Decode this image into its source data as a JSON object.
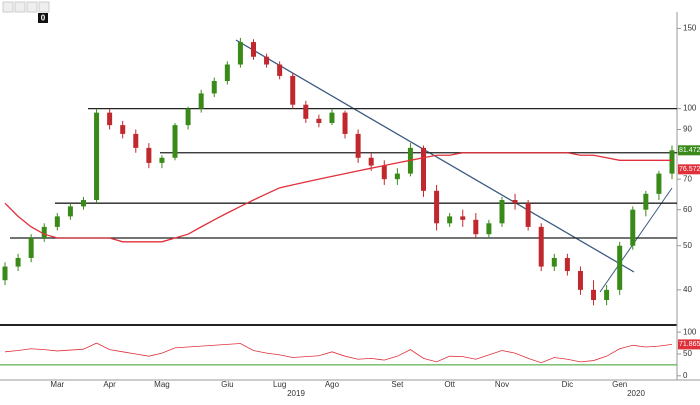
{
  "toolbar": {
    "counter": "0"
  },
  "chart_data": {
    "type": "candlestick",
    "categories": [
      null,
      null,
      null,
      null,
      "Mar",
      null,
      null,
      null,
      "Apr",
      null,
      null,
      null,
      "Mag",
      null,
      null,
      null,
      null,
      "Giu",
      null,
      null,
      null,
      "Lug",
      null,
      null,
      null,
      "Ago",
      null,
      null,
      null,
      null,
      "Set",
      null,
      null,
      null,
      "Ott",
      null,
      null,
      null,
      "Nov",
      null,
      null,
      null,
      null,
      "Dic",
      null,
      null,
      null,
      "Gen",
      null,
      null,
      null,
      null
    ],
    "years": [
      "2019",
      "2020"
    ],
    "open": [
      42,
      45,
      47,
      52,
      55,
      58,
      61,
      63,
      98,
      92,
      88,
      82,
      76,
      78,
      92,
      100,
      108,
      115,
      125,
      140,
      130,
      125,
      118,
      102,
      95,
      93,
      98,
      88,
      78,
      75,
      70,
      72,
      82,
      66,
      56,
      58,
      57,
      53,
      56,
      63,
      62,
      55,
      45,
      47,
      44,
      40,
      38,
      40,
      50,
      60,
      65,
      72
    ],
    "high": [
      46,
      48,
      53,
      56,
      59,
      62,
      64,
      100,
      100,
      94,
      90,
      84,
      79,
      93,
      101,
      110,
      117,
      127,
      143,
      142,
      132,
      127,
      120,
      104,
      97,
      100,
      99,
      90,
      80,
      77,
      74,
      84,
      83,
      68,
      59,
      60,
      59,
      57,
      64,
      65,
      63,
      56,
      48,
      48,
      45,
      42,
      41,
      51,
      61,
      66,
      73,
      83
    ],
    "low": [
      41,
      44,
      46,
      51,
      54,
      57,
      60,
      62,
      90,
      86,
      80,
      74,
      74,
      77,
      90,
      98,
      106,
      113,
      123,
      128,
      123,
      116,
      100,
      93,
      91,
      92,
      86,
      76,
      73,
      68,
      68,
      71,
      64,
      54,
      55,
      55,
      52,
      52,
      55,
      60,
      54,
      44,
      44,
      43,
      39,
      37,
      37,
      39,
      49,
      58,
      63,
      70
    ],
    "close": [
      45,
      47,
      52,
      55,
      58,
      61,
      63,
      98,
      92,
      88,
      82,
      76,
      78,
      92,
      100,
      108,
      115,
      125,
      140,
      130,
      125,
      118,
      102,
      95,
      93,
      98,
      88,
      78,
      75,
      70,
      72,
      82,
      66,
      56,
      58,
      57,
      53,
      56,
      63,
      62,
      55,
      45,
      47,
      44,
      40,
      38,
      40,
      50,
      60,
      65,
      72,
      81
    ],
    "up_color": "#3a8a1a",
    "down_color": "#c0282d",
    "moving_average": {
      "color": "#e0303a",
      "values": [
        62,
        58,
        55,
        53,
        52,
        52,
        52,
        52,
        52,
        51,
        51,
        51,
        51,
        52,
        53,
        55,
        57,
        59,
        61,
        63,
        65,
        67,
        68,
        69,
        70,
        71,
        72,
        73,
        74,
        75,
        76,
        77,
        78,
        79,
        79,
        80,
        80,
        80,
        80,
        80,
        80,
        80,
        80,
        80,
        79,
        79,
        78,
        77,
        77,
        77,
        77,
        77
      ]
    },
    "levels": [
      100,
      80,
      62,
      52
    ],
    "log_scale": true,
    "ylim": [
      34,
      163
    ],
    "yticks": [
      40,
      50,
      60,
      70,
      80,
      90,
      100,
      150
    ],
    "last_price_label": "81.4720",
    "ma_label": "76.5720",
    "indicator": {
      "color": "#e0303a",
      "level_color": "#3aa02a",
      "level": 25,
      "ylim": [
        -5,
        105
      ],
      "yticks": [
        0,
        50,
        100
      ],
      "last_label": "71.8658",
      "values": [
        55,
        58,
        62,
        60,
        57,
        59,
        61,
        75,
        60,
        55,
        50,
        45,
        52,
        64,
        66,
        68,
        70,
        72,
        74,
        58,
        52,
        48,
        42,
        44,
        46,
        55,
        45,
        38,
        40,
        36,
        45,
        60,
        40,
        32,
        45,
        44,
        38,
        48,
        58,
        52,
        40,
        30,
        42,
        38,
        32,
        35,
        45,
        62,
        70,
        66,
        68,
        72
      ]
    }
  }
}
